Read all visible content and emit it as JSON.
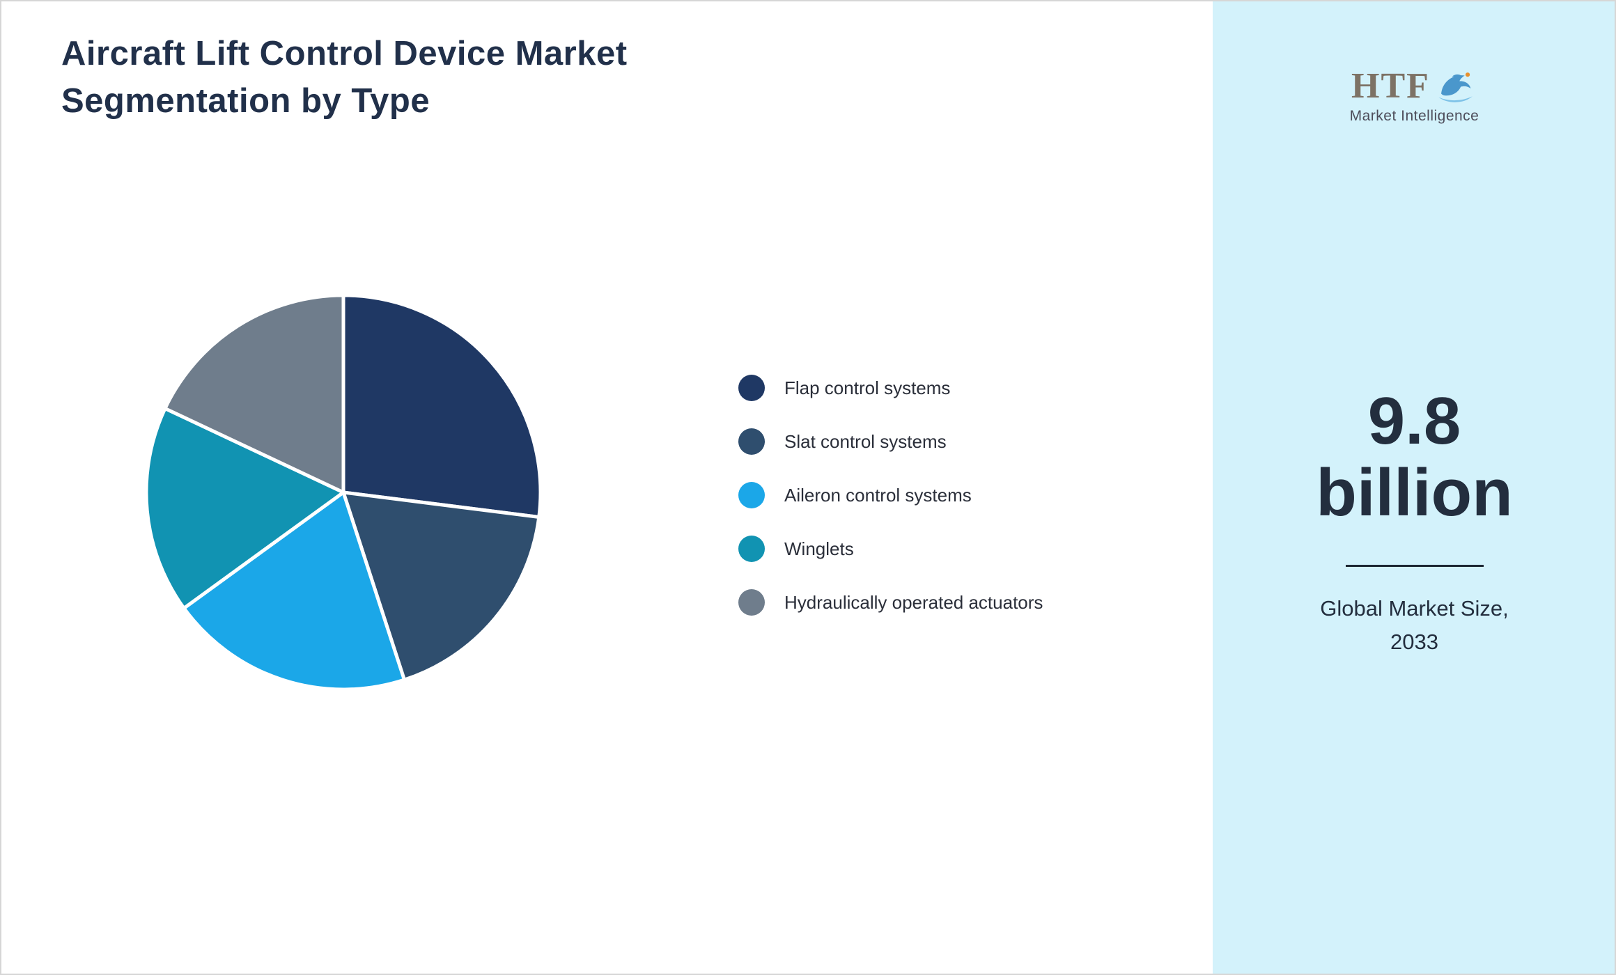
{
  "title": {
    "line1": "Aircraft Lift Control Device Market",
    "line2": "Segmentation by Type"
  },
  "logo": {
    "text": "HTF",
    "subtext": "Market Intelligence"
  },
  "sidebar": {
    "background": "#d3f2fb",
    "value_line1": "9.8",
    "value_line2": "billion",
    "caption_line1": "Global Market Size,",
    "caption_line2": "2033"
  },
  "chart_data": {
    "type": "pie",
    "title": "Aircraft Lift Control Device Market Segmentation by Type",
    "categories": [
      "Flap control systems",
      "Slat control systems",
      "Aileron control systems",
      "Winglets",
      "Hydraulically operated actuators"
    ],
    "values": [
      27,
      18,
      20,
      17,
      18
    ],
    "colors": [
      "#1f3864",
      "#2f4e6e",
      "#1ba7e8",
      "#1193b2",
      "#6f7d8c"
    ],
    "start_angle_deg": 0,
    "direction": "clockwise",
    "legend_position": "right",
    "slice_stroke": "#ffffff"
  }
}
